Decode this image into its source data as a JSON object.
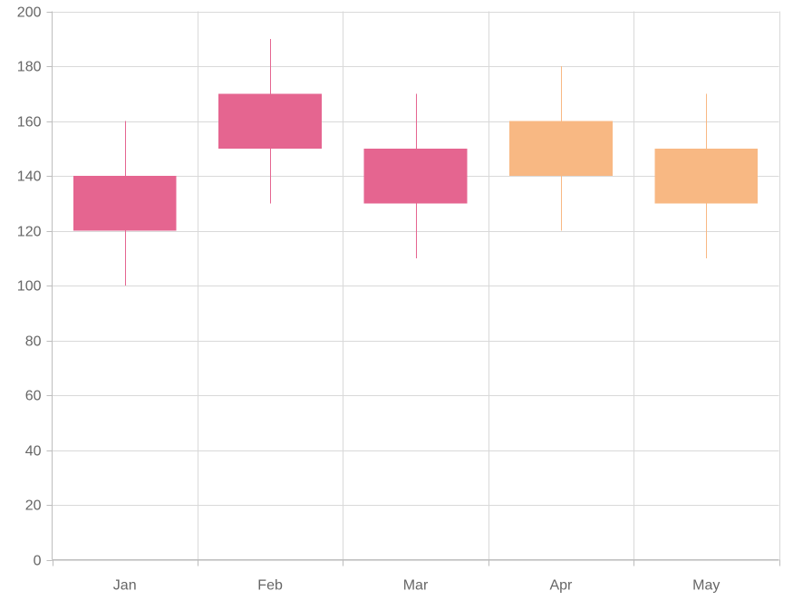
{
  "chart_data": {
    "type": "candlestick",
    "title": "",
    "xlabel": "",
    "ylabel": "",
    "categories": [
      "Jan",
      "Feb",
      "Mar",
      "Apr",
      "May"
    ],
    "ohlc": [
      {
        "category": "Jan",
        "open": 140,
        "high": 160,
        "low": 100,
        "close": 120
      },
      {
        "category": "Feb",
        "open": 170,
        "high": 190,
        "low": 130,
        "close": 150
      },
      {
        "category": "Mar",
        "open": 150,
        "high": 170,
        "low": 110,
        "close": 130
      },
      {
        "category": "Apr",
        "open": 140,
        "high": 180,
        "low": 120,
        "close": 160
      },
      {
        "category": "May",
        "open": 130,
        "high": 170,
        "low": 110,
        "close": 150
      }
    ],
    "ylim": [
      0,
      200
    ],
    "y_ticks": [
      0,
      20,
      40,
      60,
      80,
      100,
      120,
      140,
      160,
      180,
      200
    ],
    "grid": true,
    "colors": {
      "bullish": "#F8B883",
      "bearish": "#E56590",
      "grid": "#d9d9d9",
      "axis": "#bdbdbd",
      "label": "#666666"
    }
  }
}
